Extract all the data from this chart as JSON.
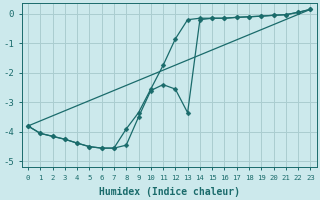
{
  "xlabel": "Humidex (Indice chaleur)",
  "ylabel": "",
  "xlim_min": -0.5,
  "xlim_max": 23.5,
  "ylim_min": -5.2,
  "ylim_max": 0.35,
  "bg_color": "#cce9ec",
  "grid_color": "#aacdd0",
  "line_color": "#1a6b6b",
  "x_ticks": [
    0,
    1,
    2,
    3,
    4,
    5,
    6,
    7,
    8,
    9,
    10,
    11,
    12,
    13,
    14,
    15,
    16,
    17,
    18,
    19,
    20,
    21,
    22,
    23
  ],
  "y_ticks": [
    0,
    -1,
    -2,
    -3,
    -4,
    -5
  ],
  "line1_x": [
    0,
    1,
    2,
    3,
    4,
    5,
    6,
    7,
    8,
    9,
    10,
    11,
    12,
    13,
    14,
    15,
    16,
    17,
    18,
    19,
    20,
    21,
    22,
    23
  ],
  "line1_y": [
    -3.8,
    -4.05,
    -4.15,
    -4.25,
    -4.38,
    -4.5,
    -4.55,
    -4.55,
    -4.45,
    -3.5,
    -2.6,
    -2.4,
    -2.55,
    -3.35,
    -0.2,
    -0.15,
    -0.15,
    -0.12,
    -0.1,
    -0.08,
    -0.05,
    -0.03,
    0.05,
    0.15
  ],
  "line2_x": [
    0,
    1,
    2,
    3,
    4,
    5,
    6,
    7,
    8,
    9,
    10,
    11,
    12,
    13,
    14,
    15,
    16,
    17,
    18,
    19,
    20,
    21,
    22,
    23
  ],
  "line2_y": [
    -3.8,
    -4.05,
    -4.15,
    -4.25,
    -4.38,
    -4.5,
    -4.55,
    -4.55,
    -3.9,
    -3.35,
    -2.55,
    -1.75,
    -0.85,
    -0.2,
    -0.15,
    -0.15,
    -0.15,
    -0.12,
    -0.1,
    -0.08,
    -0.05,
    -0.03,
    0.05,
    0.15
  ],
  "line3_x": [
    0,
    23
  ],
  "line3_y": [
    -3.8,
    0.15
  ]
}
